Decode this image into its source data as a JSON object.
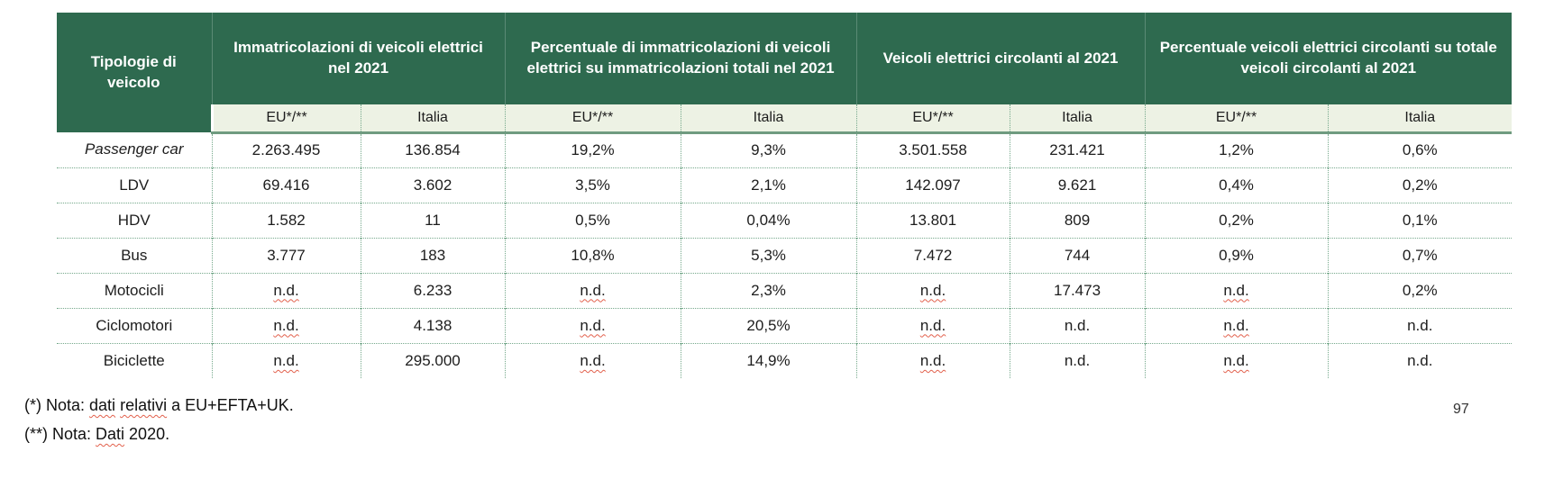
{
  "colors": {
    "header_green": "#2E6A4F",
    "subheader_bg": "#EDF2E4",
    "header_text": "#FFFFFF",
    "grid_dotted_green": "#76A98C",
    "header_underline_green": "#6F9B80",
    "spellcheck_red": "#E2604C"
  },
  "table": {
    "corner_header": "Tipologie di veicolo",
    "groups": [
      {
        "label": "Immatricolazioni di veicoli elettrici nel 2021"
      },
      {
        "label": "Percentuale di immatricolazioni di veicoli elettrici su immatricolazioni totali nel 2021"
      },
      {
        "label": "Veicoli elettrici circolanti al 2021"
      },
      {
        "label": "Percentuale veicoli elettrici circolanti su totale veicoli circolanti al 2021"
      }
    ],
    "subheaders": [
      "EU*/**",
      "Italia",
      "EU*/**",
      "Italia",
      "EU*/**",
      "Italia",
      "EU*/**",
      "Italia"
    ],
    "rows": [
      {
        "label": "Passenger car",
        "italic": true,
        "cells": [
          {
            "t": "2.263.495"
          },
          {
            "t": "136.854"
          },
          {
            "t": "19,2%"
          },
          {
            "t": "9,3%"
          },
          {
            "t": "3.501.558"
          },
          {
            "t": "231.421"
          },
          {
            "t": "1,2%"
          },
          {
            "t": "0,6%"
          }
        ]
      },
      {
        "label": "LDV",
        "cells": [
          {
            "t": "69.416"
          },
          {
            "t": "3.602"
          },
          {
            "t": "3,5%"
          },
          {
            "t": "2,1%"
          },
          {
            "t": "142.097"
          },
          {
            "t": "9.621"
          },
          {
            "t": "0,4%"
          },
          {
            "t": "0,2%"
          }
        ]
      },
      {
        "label": "HDV",
        "cells": [
          {
            "t": "1.582"
          },
          {
            "t": "11"
          },
          {
            "t": "0,5%"
          },
          {
            "t": "0,04%"
          },
          {
            "t": "13.801"
          },
          {
            "t": "809"
          },
          {
            "t": "0,2%"
          },
          {
            "t": "0,1%"
          }
        ]
      },
      {
        "label": "Bus",
        "cells": [
          {
            "t": "3.777"
          },
          {
            "t": "183"
          },
          {
            "t": "10,8%"
          },
          {
            "t": "5,3%"
          },
          {
            "t": "7.472"
          },
          {
            "t": "744"
          },
          {
            "t": "0,9%"
          },
          {
            "t": "0,7%"
          }
        ]
      },
      {
        "label": "Motocicli",
        "cells": [
          {
            "t": "n.d.",
            "sq": true
          },
          {
            "t": "6.233"
          },
          {
            "t": "n.d.",
            "sq": true
          },
          {
            "t": "2,3%"
          },
          {
            "t": "n.d.",
            "sq": true
          },
          {
            "t": "17.473"
          },
          {
            "t": "n.d.",
            "sq": true
          },
          {
            "t": "0,2%"
          }
        ]
      },
      {
        "label": "Ciclomotori",
        "cells": [
          {
            "t": "n.d.",
            "sq": true
          },
          {
            "t": "4.138"
          },
          {
            "t": "n.d.",
            "sq": true
          },
          {
            "t": "20,5%"
          },
          {
            "t": "n.d.",
            "sq": true
          },
          {
            "t": "n.d."
          },
          {
            "t": "n.d.",
            "sq": true
          },
          {
            "t": "n.d."
          }
        ]
      },
      {
        "label": "Biciclette",
        "cells": [
          {
            "t": "n.d.",
            "sq": true
          },
          {
            "t": "295.000"
          },
          {
            "t": "n.d.",
            "sq": true
          },
          {
            "t": "14,9%"
          },
          {
            "t": "n.d.",
            "sq": true
          },
          {
            "t": "n.d."
          },
          {
            "t": "n.d.",
            "sq": true
          },
          {
            "t": "n.d."
          }
        ]
      }
    ]
  },
  "notes": [
    {
      "segments": [
        {
          "t": "(*) Nota: "
        },
        {
          "t": "dati",
          "sq": true
        },
        {
          "t": " "
        },
        {
          "t": "relativi",
          "sq": true
        },
        {
          "t": " a EU+EFTA+UK."
        }
      ]
    },
    {
      "segments": [
        {
          "t": "(**) Nota: "
        },
        {
          "t": "Dati",
          "sq": true
        },
        {
          "t": " 2020."
        }
      ]
    }
  ],
  "page_number": "97"
}
